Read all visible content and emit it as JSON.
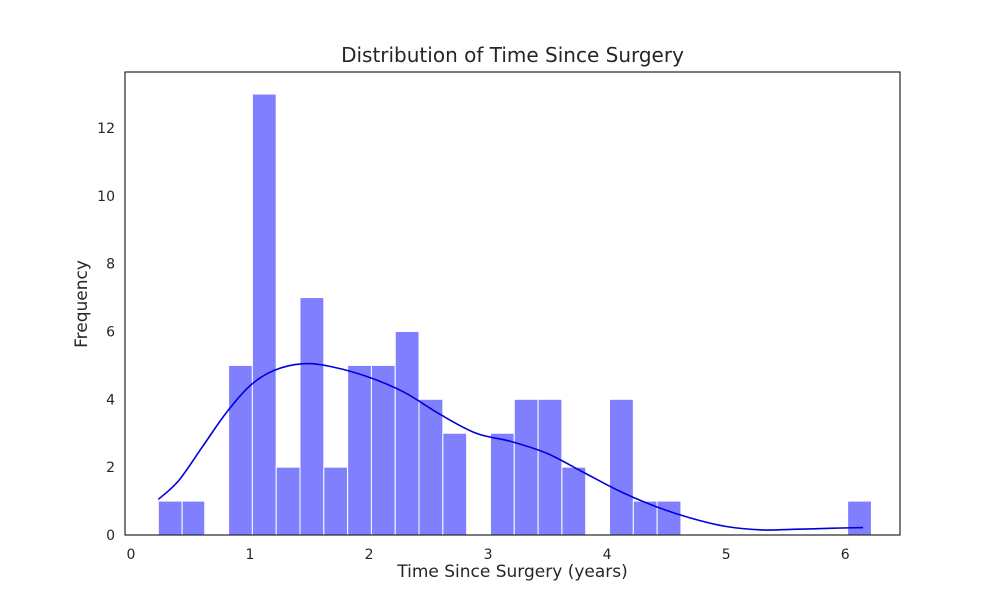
{
  "chart_data": {
    "type": "bar",
    "title": "Distribution of Time Since Surgery",
    "xlabel": "Time Since Surgery (years)",
    "ylabel": "Frequency",
    "xlim": [
      -0.05,
      6.46
    ],
    "ylim": [
      0,
      13.65
    ],
    "xticks": [
      0,
      1,
      2,
      3,
      4,
      5,
      6
    ],
    "yticks": [
      0,
      2,
      4,
      6,
      8,
      10,
      12
    ],
    "bins": {
      "edges": [
        0.23,
        0.43,
        0.62,
        0.82,
        1.02,
        1.22,
        1.42,
        1.62,
        1.82,
        2.02,
        2.22,
        2.42,
        2.62,
        2.82,
        3.02,
        3.22,
        3.42,
        3.62,
        3.82,
        4.02,
        4.22,
        4.42,
        4.62,
        4.82,
        5.02,
        5.22,
        5.42,
        5.62,
        5.82,
        6.02,
        6.22
      ],
      "counts": [
        1,
        1,
        0,
        5,
        13,
        2,
        7,
        2,
        5,
        5,
        6,
        4,
        3,
        0,
        3,
        4,
        4,
        2,
        0,
        4,
        1,
        1,
        0,
        0,
        0,
        0,
        0,
        0,
        0,
        1
      ]
    },
    "kde": {
      "x": [
        0.23,
        0.4,
        0.6,
        0.8,
        1.0,
        1.2,
        1.45,
        1.7,
        2.0,
        2.3,
        2.6,
        2.9,
        3.2,
        3.5,
        3.8,
        4.1,
        4.4,
        4.7,
        5.0,
        5.3,
        5.6,
        5.9,
        6.15
      ],
      "y": [
        1.05,
        1.6,
        2.6,
        3.6,
        4.4,
        4.85,
        5.05,
        4.95,
        4.65,
        4.2,
        3.55,
        3.0,
        2.75,
        2.4,
        1.85,
        1.3,
        0.85,
        0.5,
        0.25,
        0.15,
        0.17,
        0.2,
        0.22
      ]
    },
    "grid": false,
    "colors": {
      "bar": "#8080ff",
      "bar_edge": "#ffffff",
      "kde": "#0000dd",
      "axis": "#262626",
      "text": "#262626"
    }
  }
}
